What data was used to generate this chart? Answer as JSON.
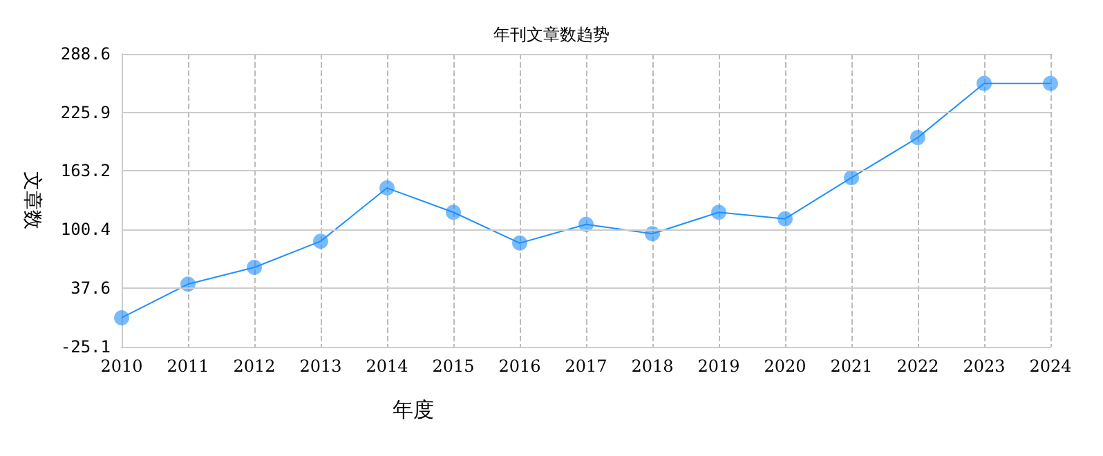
{
  "chart_data": {
    "type": "line",
    "title": "年刊文章数趋势",
    "xlabel": "年度",
    "ylabel": "文章数",
    "categories": [
      "2010",
      "2011",
      "2012",
      "2013",
      "2014",
      "2015",
      "2016",
      "2017",
      "2018",
      "2019",
      "2020",
      "2021",
      "2022",
      "2023",
      "2024"
    ],
    "series": [
      {
        "color": "#1e90ff",
        "values": [
          6,
          42,
          60,
          88,
          145,
          119,
          86,
          106,
          96,
          119,
          112,
          156,
          199,
          257,
          257
        ]
      }
    ],
    "ylim": [
      -25.1,
      288.6
    ],
    "yticks": [
      -25.1,
      37.6,
      100.4,
      163.2,
      225.9,
      288.6
    ],
    "grid": true,
    "marker": "circle",
    "line_style": "solid"
  }
}
